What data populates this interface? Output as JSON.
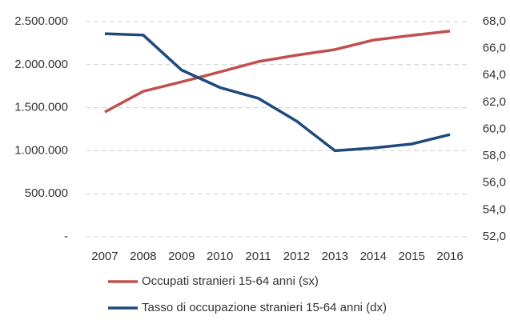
{
  "chart_data": {
    "type": "line",
    "categories": [
      "2007",
      "2008",
      "2009",
      "2010",
      "2011",
      "2012",
      "2013",
      "2014",
      "2015",
      "2016"
    ],
    "series": [
      {
        "name": "Occupati stranieri 15-64 anni (sx)",
        "color": "#c0504d",
        "axis": "y",
        "values": [
          1450000,
          1690000,
          1800000,
          1915000,
          2035000,
          2110000,
          2175000,
          2285000,
          2340000,
          2390000
        ]
      },
      {
        "name": "Tasso di occupazione stranieri 15-64 anni (dx)",
        "color": "#1f497d",
        "axis": "y2",
        "values": [
          67.1,
          67.0,
          64.4,
          63.1,
          62.3,
          60.6,
          58.4,
          58.6,
          58.9,
          59.6
        ]
      }
    ],
    "ylim": [
      0,
      2500000
    ],
    "yticks": [
      {
        "value": 0,
        "label": "-"
      },
      {
        "value": 500000,
        "label": "500.000"
      },
      {
        "value": 1000000,
        "label": "1.000.000"
      },
      {
        "value": 1500000,
        "label": "1.500.000"
      },
      {
        "value": 2000000,
        "label": "2.000.000"
      },
      {
        "value": 2500000,
        "label": "2.500.000"
      }
    ],
    "y2lim": [
      52,
      68
    ],
    "y2ticks": [
      {
        "value": 52,
        "label": "52,0"
      },
      {
        "value": 54,
        "label": "54,0"
      },
      {
        "value": 56,
        "label": "56,0"
      },
      {
        "value": 58,
        "label": "58,0"
      },
      {
        "value": 60,
        "label": "60,0"
      },
      {
        "value": 62,
        "label": "62,0"
      },
      {
        "value": 64,
        "label": "64,0"
      },
      {
        "value": 66,
        "label": "66,0"
      },
      {
        "value": 68,
        "label": "68,0"
      }
    ],
    "grid": true,
    "legend": "bottom"
  }
}
